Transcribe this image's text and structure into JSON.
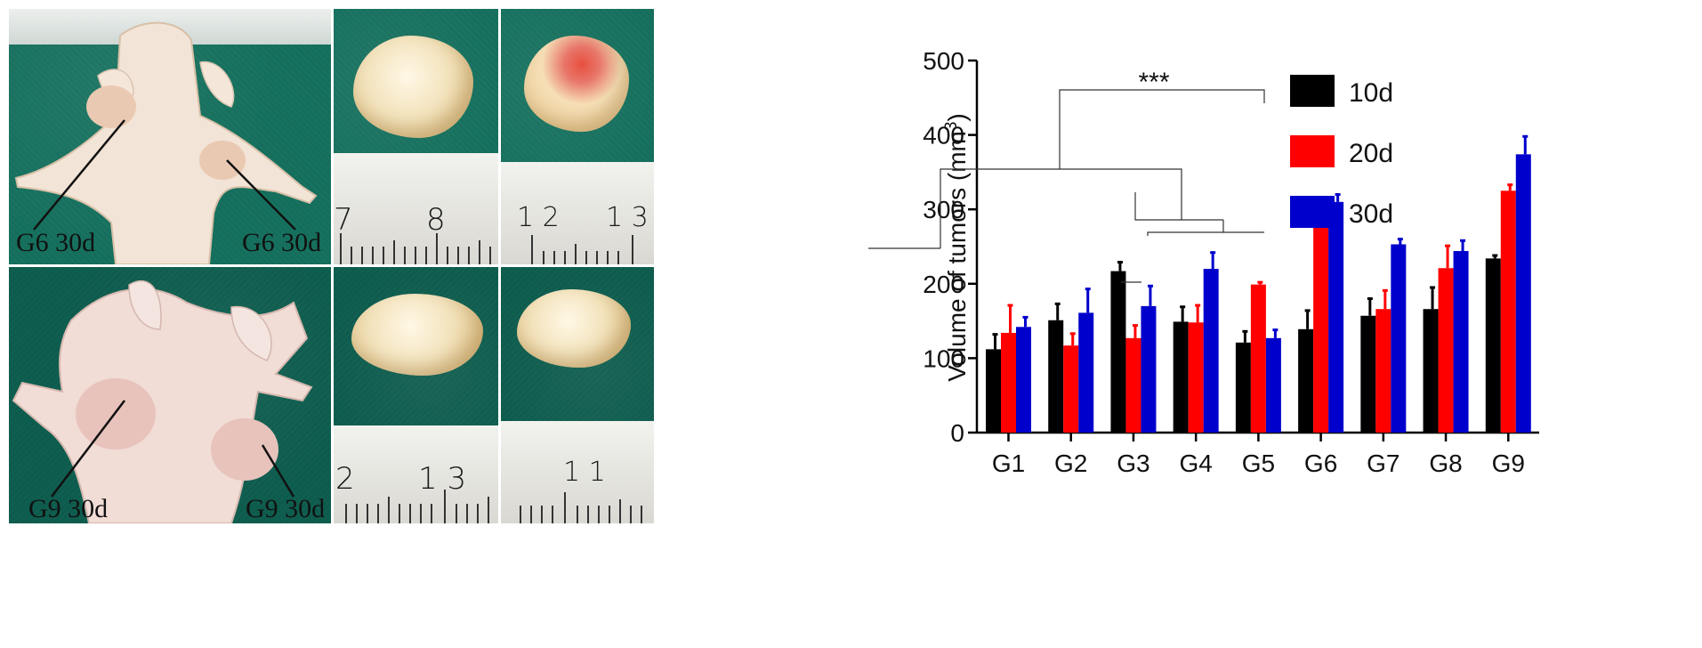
{
  "photos": {
    "captions": {
      "top_left": "G6 30d",
      "top_right": "G6 30d",
      "bottom_left": "G9 30d",
      "bottom_right": "G9 30d"
    },
    "rulers": {
      "top_middle": [
        "7",
        "8"
      ],
      "top_right": [
        "1 2",
        "1 3"
      ],
      "bottom_middle": [
        "2",
        "1 3"
      ],
      "bottom_right": [
        "1 1"
      ]
    }
  },
  "chart_data": {
    "type": "bar",
    "ylabel": "Volume of tumors (mm",
    "ylabel_sup": "3",
    "ylabel_end": ")",
    "ylim": [
      0,
      500
    ],
    "yticks": [
      0,
      100,
      200,
      300,
      400,
      500
    ],
    "categories": [
      "G1",
      "G2",
      "G3",
      "G4",
      "G5",
      "G6",
      "G7",
      "G8",
      "G9"
    ],
    "series": [
      {
        "name": "10d",
        "color": "#000000",
        "values": [
          112,
          151,
          217,
          149,
          121,
          139,
          157,
          166,
          234
        ],
        "errors": [
          20,
          22,
          12,
          20,
          15,
          25,
          23,
          29,
          4
        ]
      },
      {
        "name": "20d",
        "color": "#ff0000",
        "values": [
          134,
          117,
          127,
          148,
          199,
          306,
          166,
          221,
          325
        ],
        "errors": [
          37,
          16,
          17,
          23,
          3,
          5,
          25,
          30,
          8
        ]
      },
      {
        "name": "30d",
        "color": "#0000cc",
        "values": [
          142,
          161,
          170,
          220,
          127,
          310,
          253,
          244,
          374
        ],
        "errors": [
          13,
          32,
          27,
          22,
          11,
          10,
          7,
          14,
          24
        ]
      }
    ],
    "legend_position": "top-right",
    "annotation": "***",
    "grid": false
  }
}
